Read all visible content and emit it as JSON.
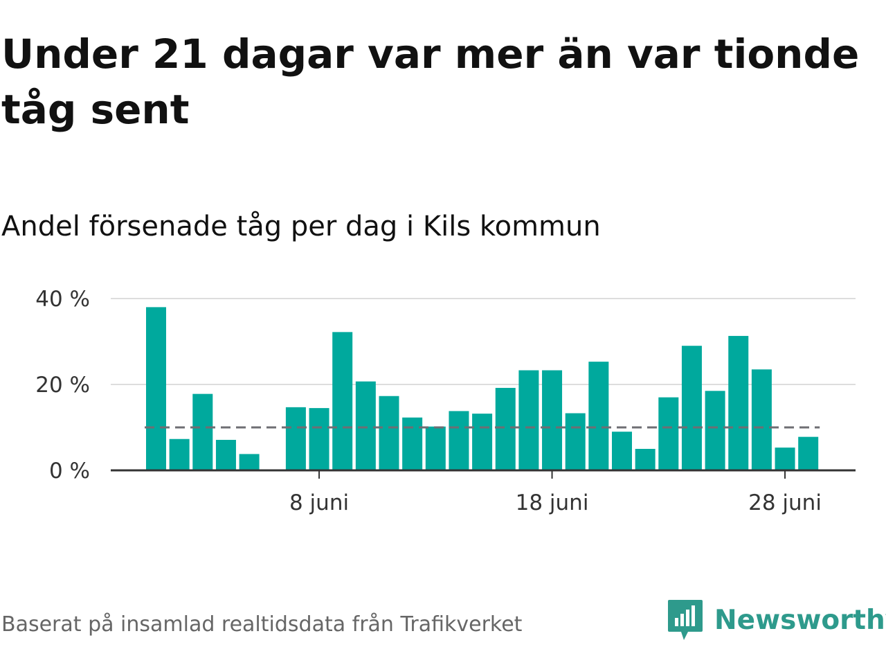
{
  "title": "Under 21 dagar var mer än var tionde tåg sent",
  "subtitle": "Andel försenade tåg per dag i Kils kommun",
  "footer": "Baserat på insamlad realtidsdata från Trafikverket",
  "brand": "Newsworthy",
  "colors": {
    "bar": "#00a99d",
    "reference": "#6e6e73",
    "grid": "#dddddd",
    "axis": "#333333",
    "brand": "#2e9a8c"
  },
  "chart_data": {
    "type": "bar",
    "x": [
      "2024-06-01",
      "2024-06-02",
      "2024-06-03",
      "2024-06-04",
      "2024-06-05",
      "2024-06-06",
      "2024-06-07",
      "2024-06-08",
      "2024-06-09",
      "2024-06-10",
      "2024-06-11",
      "2024-06-12",
      "2024-06-13",
      "2024-06-14",
      "2024-06-15",
      "2024-06-16",
      "2024-06-17",
      "2024-06-18",
      "2024-06-19",
      "2024-06-20",
      "2024-06-21",
      "2024-06-22",
      "2024-06-23",
      "2024-06-24",
      "2024-06-25",
      "2024-06-26",
      "2024-06-27",
      "2024-06-28",
      "2024-06-29"
    ],
    "values": [
      38,
      7.3,
      17.8,
      7.1,
      3.8,
      null,
      14.7,
      14.5,
      32.2,
      20.7,
      17.3,
      12.3,
      10.2,
      13.8,
      13.2,
      19.2,
      23.3,
      23.3,
      13.3,
      25.3,
      9.0,
      5.0,
      17.0,
      29.0,
      18.5,
      31.3,
      23.5,
      5.3,
      7.8
    ],
    "ylim": [
      0,
      40
    ],
    "yticks": [
      0,
      20,
      40
    ],
    "ytick_labels": [
      "0 %",
      "20 %",
      "40 %"
    ],
    "xticks": [
      "2024-06-08",
      "2024-06-18",
      "2024-06-28"
    ],
    "xtick_labels": [
      "8 juni",
      "18 juni",
      "28 juni"
    ],
    "reference_line": 10,
    "grid": true
  }
}
